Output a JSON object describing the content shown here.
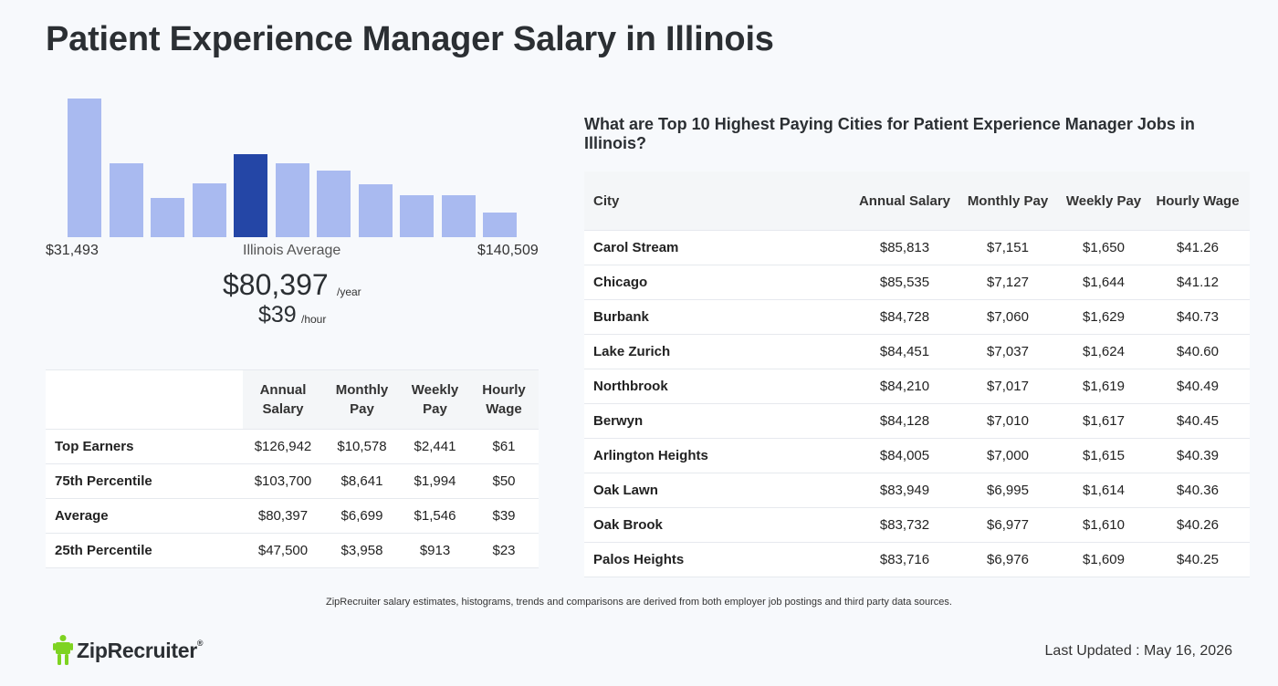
{
  "page_title": "Patient Experience Manager Salary in Illinois",
  "chart_data": {
    "type": "bar",
    "categories": [
      "1",
      "2",
      "3",
      "4",
      "5",
      "6",
      "7",
      "8",
      "9",
      "10",
      "11"
    ],
    "values": [
      100,
      53,
      28,
      39,
      60,
      53,
      48,
      38,
      30,
      30,
      18
    ],
    "highlight_index": 4,
    "ylim": [
      0,
      100
    ],
    "grid": false,
    "colors": {
      "bar": "#a9baf0",
      "highlight": "#2446a6"
    }
  },
  "histogram": {
    "min_label": "$31,493",
    "max_label": "$140,509",
    "avg_label": "Illinois Average",
    "annual_value": "$80,397",
    "annual_unit": "/year",
    "hourly_value": "$39",
    "hourly_unit": "/hour"
  },
  "percentile_table": {
    "headers": [
      "",
      "Annual Salary",
      "Monthly Pay",
      "Weekly Pay",
      "Hourly Wage"
    ],
    "rows": [
      [
        "Top Earners",
        "$126,942",
        "$10,578",
        "$2,441",
        "$61"
      ],
      [
        "75th Percentile",
        "$103,700",
        "$8,641",
        "$1,994",
        "$50"
      ],
      [
        "Average",
        "$80,397",
        "$6,699",
        "$1,546",
        "$39"
      ],
      [
        "25th Percentile",
        "$47,500",
        "$3,958",
        "$913",
        "$23"
      ]
    ]
  },
  "cities": {
    "question": "What are Top 10 Highest Paying Cities for Patient Experience Manager Jobs in Illinois?",
    "headers": [
      "City",
      "Annual Salary",
      "Monthly Pay",
      "Weekly Pay",
      "Hourly Wage"
    ],
    "rows": [
      [
        "Carol Stream",
        "$85,813",
        "$7,151",
        "$1,650",
        "$41.26"
      ],
      [
        "Chicago",
        "$85,535",
        "$7,127",
        "$1,644",
        "$41.12"
      ],
      [
        "Burbank",
        "$84,728",
        "$7,060",
        "$1,629",
        "$40.73"
      ],
      [
        "Lake Zurich",
        "$84,451",
        "$7,037",
        "$1,624",
        "$40.60"
      ],
      [
        "Northbrook",
        "$84,210",
        "$7,017",
        "$1,619",
        "$40.49"
      ],
      [
        "Berwyn",
        "$84,128",
        "$7,010",
        "$1,617",
        "$40.45"
      ],
      [
        "Arlington Heights",
        "$84,005",
        "$7,000",
        "$1,615",
        "$40.39"
      ],
      [
        "Oak Lawn",
        "$83,949",
        "$6,995",
        "$1,614",
        "$40.36"
      ],
      [
        "Oak Brook",
        "$83,732",
        "$6,977",
        "$1,610",
        "$40.26"
      ],
      [
        "Palos Heights",
        "$83,716",
        "$6,976",
        "$1,609",
        "$40.25"
      ]
    ]
  },
  "disclaimer": "ZipRecruiter salary estimates, histograms, trends and comparisons are derived from both employer job postings and third party data sources.",
  "logo": {
    "text": "ZipRecruiter",
    "reg": "®",
    "icon": "ziprecruiter-logo-icon",
    "color": "#7ed321"
  },
  "last_updated": "Last Updated : May 16, 2026"
}
